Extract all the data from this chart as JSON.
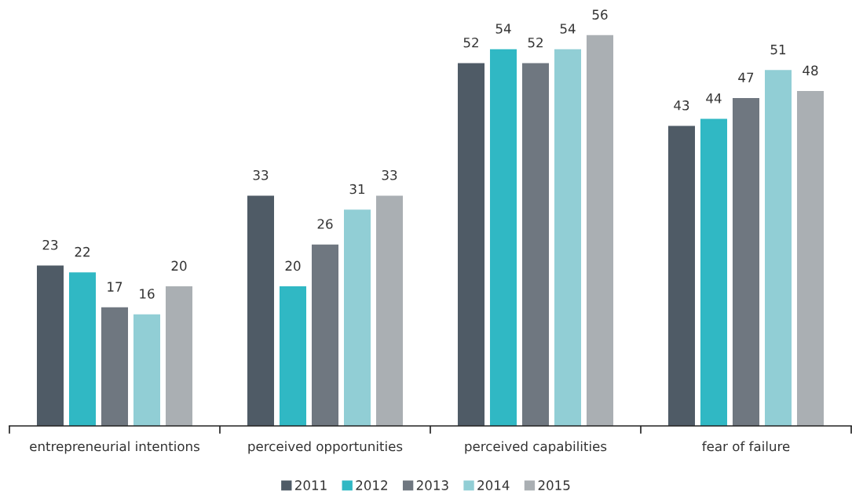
{
  "chart_data": {
    "type": "bar",
    "categories": [
      "entrepreneurial intentions",
      "perceived opportunities",
      "perceived capabilities",
      "fear of failure"
    ],
    "series": [
      {
        "name": "2011",
        "color": "#4f5b66",
        "values": [
          23,
          33,
          52,
          43
        ]
      },
      {
        "name": "2012",
        "color": "#30b8c4",
        "values": [
          22,
          20,
          54,
          44
        ]
      },
      {
        "name": "2013",
        "color": "#6f7780",
        "values": [
          17,
          26,
          52,
          47
        ]
      },
      {
        "name": "2014",
        "color": "#91ced5",
        "values": [
          16,
          31,
          54,
          51
        ]
      },
      {
        "name": "2015",
        "color": "#aaafb3",
        "values": [
          20,
          33,
          56,
          48
        ]
      }
    ],
    "data_labels": true,
    "legend": "bottom",
    "grid": false,
    "tick_labels": "x"
  }
}
